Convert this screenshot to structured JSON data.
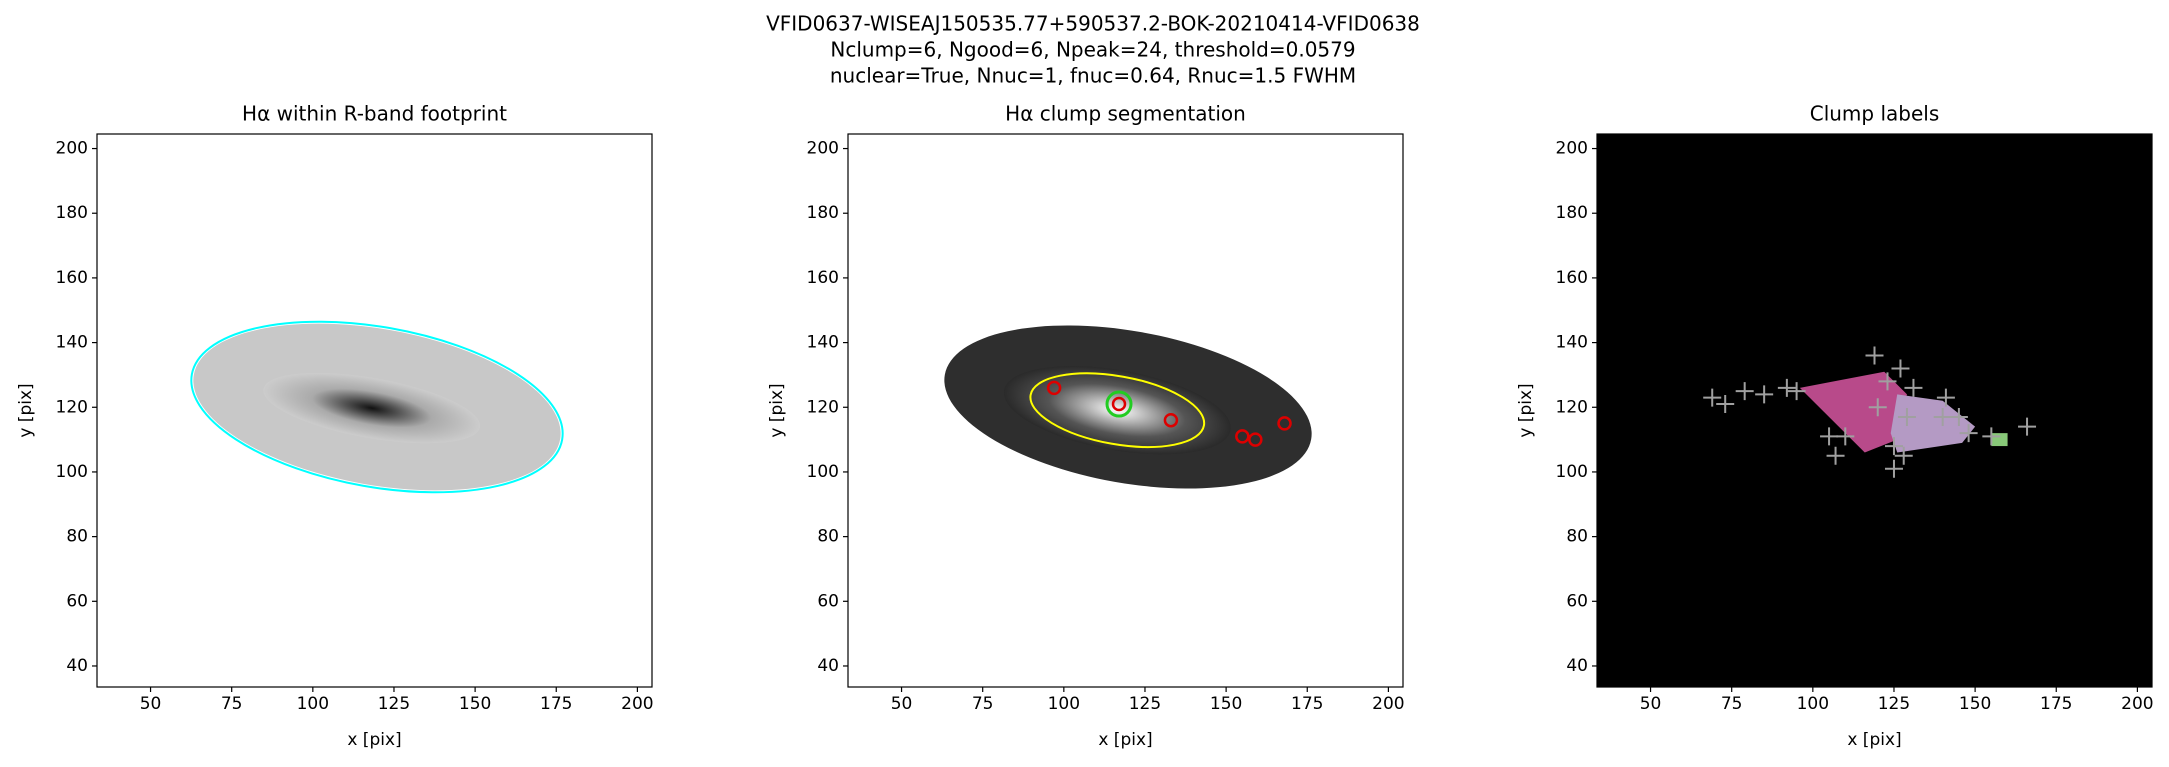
{
  "figure": {
    "title_lines": [
      "VFID0637-WISEAJ150535.77+590537.2-BOK-20210414-VFID0638",
      "Nclump=6, Ngood=6, Npeak=24, threshold=0.0579",
      "nuclear=True, Nnuc=1, fnuc=0.64, Rnuc=1.5 FWHM"
    ]
  },
  "chart_data": [
    {
      "type": "image",
      "title": "Hα within R-band footprint",
      "xlabel": "x [pix]",
      "ylabel": "y [pix]",
      "xlim": [
        33.5,
        204.5
      ],
      "ylim": [
        33.5,
        204.5
      ],
      "xticks": [
        50,
        75,
        100,
        125,
        150,
        175,
        200
      ],
      "yticks": [
        40,
        60,
        80,
        100,
        120,
        140,
        160,
        180,
        200
      ],
      "background": "#ffffff",
      "contour_color": "#00ffff"
    },
    {
      "type": "image",
      "title": "Hα clump segmentation",
      "xlabel": "x [pix]",
      "ylabel": "y [pix]",
      "xlim": [
        33.5,
        204.5
      ],
      "ylim": [
        33.5,
        204.5
      ],
      "xticks": [
        50,
        75,
        100,
        125,
        150,
        175,
        200
      ],
      "yticks": [
        40,
        60,
        80,
        100,
        120,
        140,
        160,
        180,
        200
      ],
      "background": "#ffffff",
      "contour_color": "#ffff00",
      "clumps": {
        "color": "#dd0000",
        "x": [
          97,
          117,
          133,
          155,
          159,
          168
        ],
        "y": [
          126,
          121,
          116,
          111,
          110,
          115
        ]
      },
      "nucleus": {
        "color": "#22cc22",
        "x": [
          117
        ],
        "y": [
          121
        ]
      }
    },
    {
      "type": "image",
      "title": "Clump labels",
      "xlabel": "x [pix]",
      "ylabel": "y [pix]",
      "xlim": [
        33.5,
        204.5
      ],
      "ylim": [
        33.5,
        204.5
      ],
      "xticks": [
        50,
        75,
        100,
        125,
        150,
        175,
        200
      ],
      "yticks": [
        40,
        60,
        80,
        100,
        120,
        140,
        160,
        180,
        200
      ],
      "background": "#000000",
      "peaks": {
        "color": "#a0a0a0",
        "x": [
          69,
          73,
          79,
          85,
          92,
          95,
          119,
          123,
          127,
          131,
          120,
          129,
          125,
          128,
          105,
          107,
          110,
          125,
          141,
          140,
          145,
          148,
          155,
          166
        ],
        "y": [
          123,
          121,
          125,
          124,
          126,
          125,
          136,
          128,
          132,
          126,
          120,
          117,
          108,
          105,
          111,
          105,
          111,
          101,
          123,
          117,
          117,
          112,
          111,
          114
        ]
      }
    }
  ]
}
